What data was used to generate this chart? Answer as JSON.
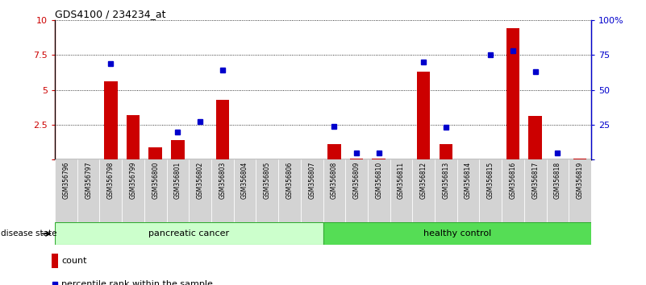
{
  "title": "GDS4100 / 234234_at",
  "samples": [
    "GSM356796",
    "GSM356797",
    "GSM356798",
    "GSM356799",
    "GSM356800",
    "GSM356801",
    "GSM356802",
    "GSM356803",
    "GSM356804",
    "GSM356805",
    "GSM356806",
    "GSM356807",
    "GSM356808",
    "GSM356809",
    "GSM356810",
    "GSM356811",
    "GSM356812",
    "GSM356813",
    "GSM356814",
    "GSM356815",
    "GSM356816",
    "GSM356817",
    "GSM356818",
    "GSM356819"
  ],
  "count_values": [
    0,
    0,
    5.6,
    3.2,
    0.9,
    1.4,
    0,
    4.3,
    0,
    0,
    0,
    0,
    1.1,
    0.1,
    0.1,
    0,
    6.3,
    1.1,
    0,
    0,
    9.4,
    3.1,
    0,
    0.1
  ],
  "percentile_values": [
    0,
    0,
    69,
    0,
    0,
    20,
    27,
    64,
    0,
    0,
    0,
    0,
    24,
    5,
    5,
    0,
    70,
    23,
    0,
    75,
    78,
    63,
    5,
    0
  ],
  "group_labels": [
    "pancreatic cancer",
    "healthy control"
  ],
  "pc_count": 12,
  "hc_count": 12,
  "group_colors": [
    "#ccffcc",
    "#55dd55"
  ],
  "ylim_left": [
    0,
    10
  ],
  "ylim_right": [
    0,
    100
  ],
  "yticks_left": [
    0,
    2.5,
    5,
    7.5,
    10
  ],
  "yticks_right": [
    0,
    25,
    50,
    75,
    100
  ],
  "bar_color_count": "#cc0000",
  "bar_color_pct": "#0000cc",
  "disease_state_label": "disease state",
  "legend_count": "count",
  "legend_pct": "percentile rank within the sample"
}
